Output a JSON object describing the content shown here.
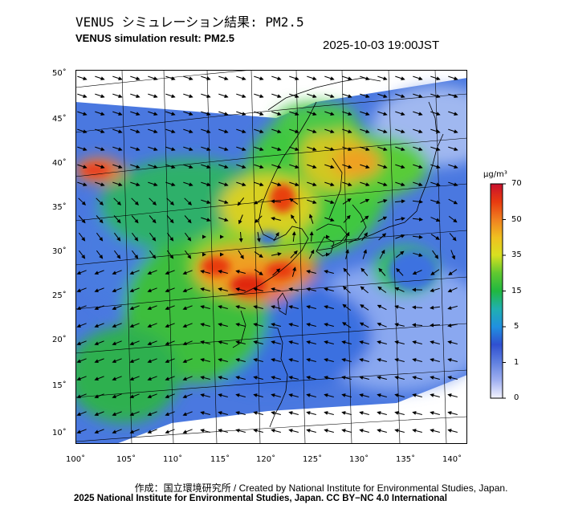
{
  "header": {
    "title_jp": "VENUS シミュレーション結果: PM2.5",
    "title_en": "VENUS simulation result: PM2.5",
    "timestamp": "2025-10-03 19:00JST"
  },
  "map": {
    "latitude_labels": [
      "50˚",
      "45˚",
      "40˚",
      "35˚",
      "30˚",
      "25˚",
      "20˚",
      "15˚",
      "10˚"
    ],
    "longitude_labels": [
      "100˚",
      "105˚",
      "110˚",
      "115˚",
      "120˚",
      "125˚",
      "130˚",
      "135˚",
      "140˚"
    ],
    "ocean_color": "#3b6fe0",
    "land_low_color": "#2fa0e8",
    "mid_color": "#35c435",
    "high_color": "#f0d020",
    "peak_color": "#e82010"
  },
  "colorbar": {
    "unit": "μg/m³",
    "tick_labels": [
      "70",
      "50",
      "35",
      "15",
      "5",
      "1",
      "0"
    ],
    "colors": [
      "#c8102e",
      "#e83a10",
      "#f08020",
      "#f0c020",
      "#d8e020",
      "#60c830",
      "#20b840",
      "#20b0b0",
      "#2090e0",
      "#3050d0",
      "#6080e0",
      "#a0b0f0",
      "#f4f4ff"
    ]
  },
  "footer": {
    "credit_line": "作成：国立環境研究所 / Created by National Institute for Environmental Studies, Japan.",
    "license_line": "2025 National Institute for Environmental Studies, Japan. CC BY−NC 4.0 International"
  }
}
